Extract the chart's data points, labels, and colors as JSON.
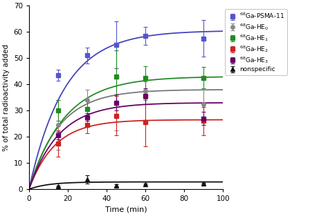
{
  "title": "",
  "xlabel": "Time (min)",
  "ylabel": "% of total radioactivity added",
  "xlim": [
    0,
    100
  ],
  "ylim": [
    0,
    70
  ],
  "yticks": [
    0,
    10,
    20,
    30,
    40,
    50,
    60,
    70
  ],
  "xticks": [
    0,
    20,
    40,
    60,
    80,
    100
  ],
  "series": [
    {
      "label": "$^{68}$Ga-PSMA-11",
      "color": "#5555cc",
      "line_color": "#4444bb",
      "marker": "s",
      "markersize": 4,
      "x": [
        15,
        30,
        45,
        60,
        90
      ],
      "y": [
        43.5,
        51.0,
        55.0,
        58.5,
        57.5
      ],
      "yerr": [
        2.0,
        3.0,
        9.0,
        3.5,
        7.0
      ],
      "fit_params": [
        60.5,
        0.055
      ]
    },
    {
      "label": "$^{68}$Ga-HE$_0$",
      "color": "#888888",
      "line_color": "#777777",
      "marker": "o",
      "markersize": 4,
      "x": [
        15,
        30,
        45,
        60,
        90
      ],
      "y": [
        24.5,
        34.0,
        33.0,
        37.5,
        32.5
      ],
      "yerr": [
        9.5,
        4.0,
        10.5,
        3.5,
        5.5
      ],
      "fit_params": [
        38.0,
        0.065
      ]
    },
    {
      "label": "$^{68}$Ga-HE$_1$",
      "color": "#228B22",
      "line_color": "#228B22",
      "marker": "s",
      "markersize": 4,
      "x": [
        15,
        30,
        45,
        60,
        90
      ],
      "y": [
        30.0,
        30.5,
        43.0,
        42.5,
        42.5
      ],
      "yerr": [
        4.0,
        3.5,
        10.0,
        4.5,
        4.0
      ],
      "fit_params": [
        43.0,
        0.055
      ]
    },
    {
      "label": "$^{68}$Ga-HE$_2$",
      "color": "#cc2222",
      "line_color": "#cc2222",
      "marker": "s",
      "markersize": 4,
      "x": [
        15,
        30,
        45,
        60,
        90
      ],
      "y": [
        17.5,
        24.5,
        28.0,
        25.5,
        26.0
      ],
      "yerr": [
        5.0,
        3.0,
        7.5,
        9.0,
        5.5
      ],
      "fit_params": [
        26.5,
        0.075
      ]
    },
    {
      "label": "$^{68}$Ga-HE$_3$",
      "color": "#660066",
      "line_color": "#660066",
      "marker": "s",
      "markersize": 4,
      "x": [
        15,
        30,
        45,
        60,
        90
      ],
      "y": [
        20.5,
        27.5,
        33.0,
        35.5,
        27.0
      ],
      "yerr": [
        1.5,
        1.5,
        3.0,
        3.0,
        2.5
      ],
      "fit_params": [
        33.0,
        0.065
      ]
    },
    {
      "label": "nonspecific",
      "color": "#111111",
      "line_color": "#111111",
      "marker": "^",
      "markersize": 4,
      "x": [
        15,
        30,
        45,
        60,
        90
      ],
      "y": [
        1.2,
        3.8,
        1.5,
        1.8,
        2.2
      ],
      "yerr": [
        0.3,
        1.5,
        0.5,
        0.4,
        0.3
      ],
      "fit_params": [
        2.8,
        0.1
      ]
    }
  ]
}
